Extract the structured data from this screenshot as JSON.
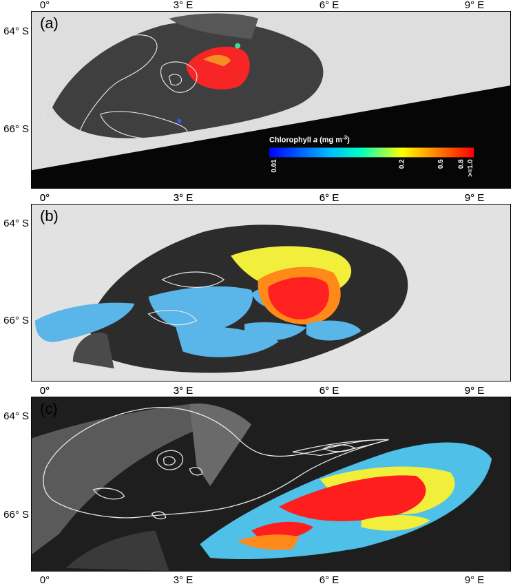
{
  "lon_ticks": [
    "0°",
    "3° E",
    "6° E",
    "9° E"
  ],
  "lat_ticks": [
    "64° S",
    "66° S"
  ],
  "panels": [
    {
      "label": "(a)"
    },
    {
      "label": "(b)"
    },
    {
      "label": "(c)"
    }
  ],
  "colorbar": {
    "title": "Chlorophyll a (mg m-3)",
    "title_main": "Chlorophyll ",
    "title_italic": "a",
    "title_unit": " (mg m",
    "title_sup": "-3",
    "title_close": ")",
    "ticks": [
      "0.01",
      "0.2",
      "0.5",
      "0.8",
      ">=1.0"
    ],
    "tick_values": [
      0.01,
      0.2,
      0.5,
      0.8,
      1.0
    ],
    "scale": "log",
    "colors": [
      "#0000ff",
      "#00bfff",
      "#00ffc0",
      "#ffff00",
      "#ff8000",
      "#ff0000"
    ]
  },
  "colors": {
    "ice": "#e6e6e6",
    "dark_water": "#3a3a3a",
    "land_mask": "#000000",
    "contour": "#e8e8e8",
    "chl_blue": "#4fb6ea",
    "chl_yellow": "#f5f03a",
    "chl_orange": "#ff8c1a",
    "chl_red": "#ff1a1a"
  }
}
